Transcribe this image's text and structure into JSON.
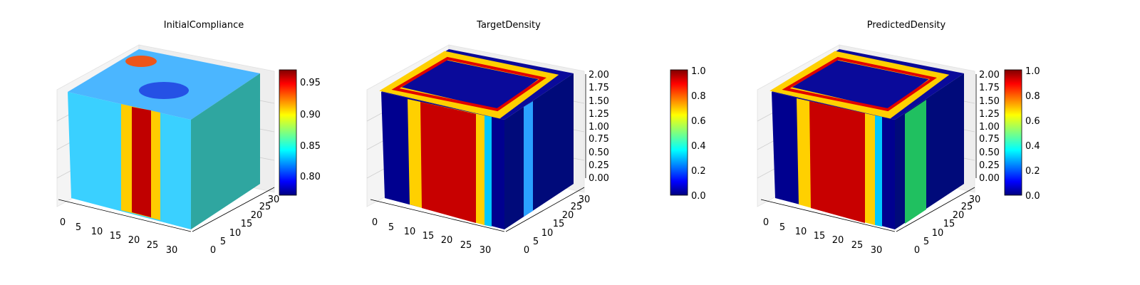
{
  "chart_data": [
    {
      "type": "3d-voxel",
      "title": "InitialCompliance",
      "x_ticks": [
        "0",
        "5",
        "10",
        "15",
        "20",
        "25",
        "30"
      ],
      "y_ticks": [
        "0",
        "5",
        "10",
        "15",
        "20",
        "25",
        "30"
      ],
      "z_ticks": [],
      "colorbar": {
        "colormap": "jet",
        "min": 0.77,
        "max": 0.97,
        "ticks": [
          "0.80",
          "0.85",
          "0.90",
          "0.95"
        ]
      }
    },
    {
      "type": "3d-voxel",
      "title": "TargetDensity",
      "x_ticks": [
        "0",
        "5",
        "10",
        "15",
        "20",
        "25",
        "30"
      ],
      "y_ticks": [
        "0",
        "5",
        "10",
        "15",
        "20",
        "25",
        "30"
      ],
      "z_ticks": [
        "0.00",
        "0.25",
        "0.50",
        "0.75",
        "1.00",
        "1.25",
        "1.50",
        "1.75",
        "2.00"
      ],
      "colorbar": {
        "colormap": "jet",
        "min": 0.0,
        "max": 1.0,
        "ticks": [
          "0.0",
          "0.2",
          "0.4",
          "0.6",
          "0.8",
          "1.0"
        ]
      }
    },
    {
      "type": "3d-voxel",
      "title": "PredictedDensity",
      "x_ticks": [
        "0",
        "5",
        "10",
        "15",
        "20",
        "25",
        "30"
      ],
      "y_ticks": [
        "0",
        "5",
        "10",
        "15",
        "20",
        "25",
        "30"
      ],
      "z_ticks": [
        "0.00",
        "0.25",
        "0.50",
        "0.75",
        "1.00",
        "1.25",
        "1.50",
        "1.75",
        "2.00"
      ],
      "colorbar": {
        "colormap": "jet",
        "min": 0.0,
        "max": 1.0,
        "ticks": [
          "0.0",
          "0.2",
          "0.4",
          "0.6",
          "0.8",
          "1.0"
        ]
      }
    }
  ]
}
